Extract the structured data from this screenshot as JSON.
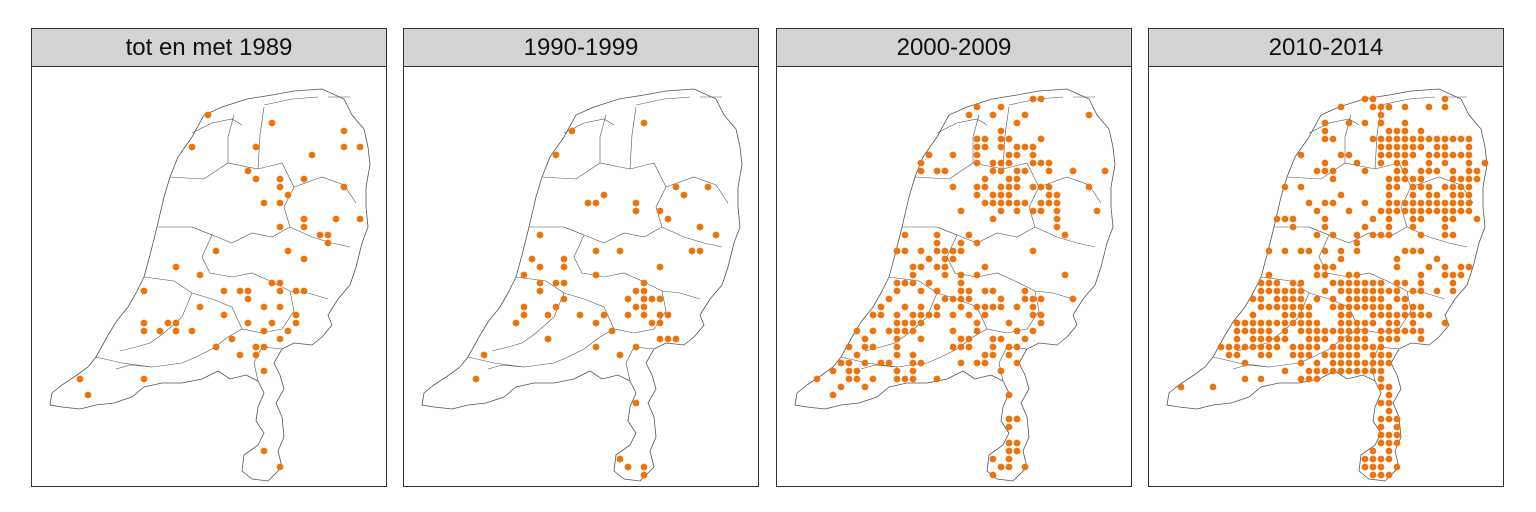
{
  "panels": [
    {
      "title": "tot en met 1989",
      "density": "low"
    },
    {
      "title": "1990-1999",
      "density": "low"
    },
    {
      "title": "2000-2009",
      "density": "medium"
    },
    {
      "title": "2010-2014",
      "density": "high"
    }
  ],
  "colors": {
    "dot": "#E87511",
    "outline": "#555555",
    "header": "#d3d3d3",
    "border": "#333333"
  }
}
